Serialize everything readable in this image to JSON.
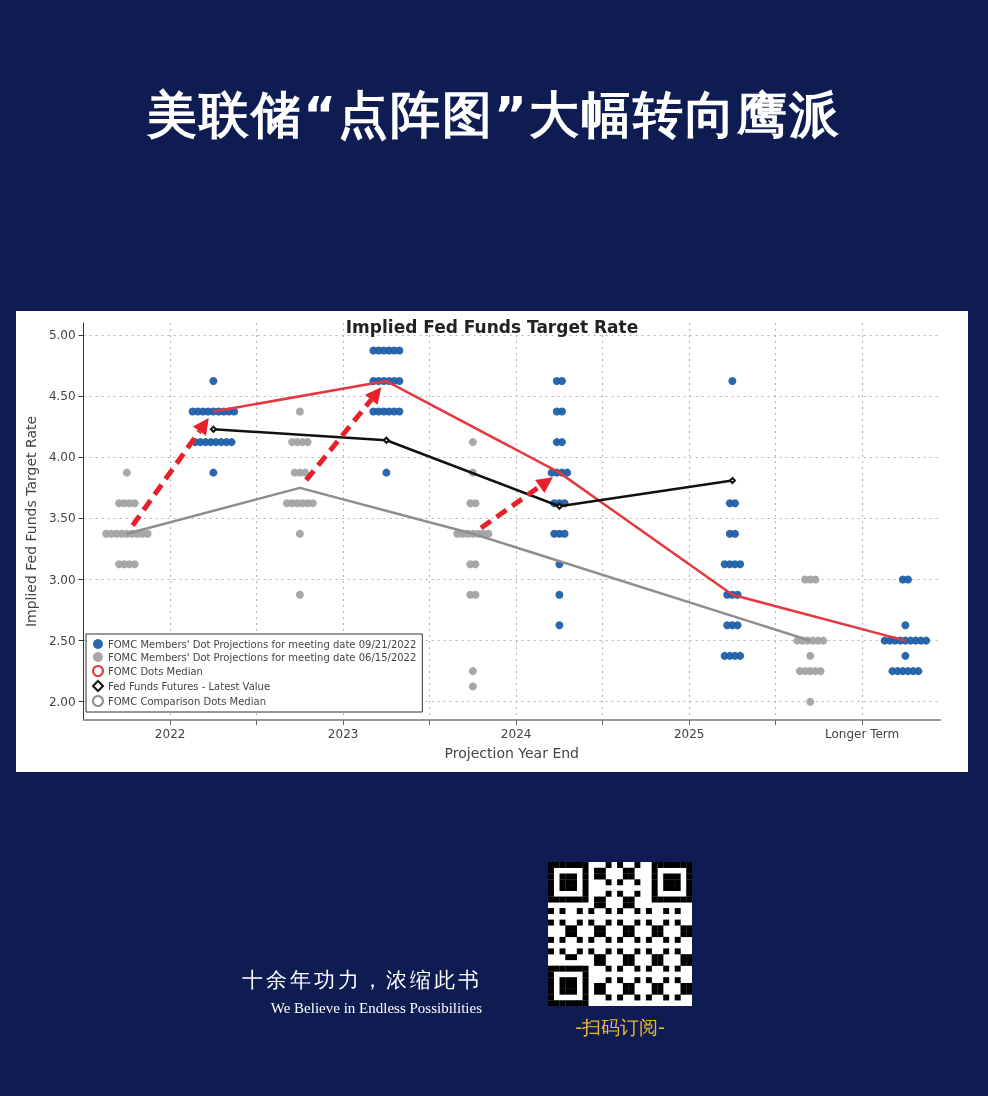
{
  "chart_data": {
    "type": "scatter",
    "title": "美联储“点阵图”大幅转向鹰派",
    "subtitle": "Implied Fed Funds Target Rate",
    "xlabel": "Projection Year End",
    "ylabel": "Implied Fed Funds Target Rate",
    "xlim": [
      2021.5,
      2026.45
    ],
    "ylim": [
      1.85,
      5.1
    ],
    "xticks": [
      {
        "value": 2022,
        "label": "2022"
      },
      {
        "value": 2022.5,
        "label": null
      },
      {
        "value": 2023,
        "label": "2023"
      },
      {
        "value": 2023.5,
        "label": null
      },
      {
        "value": 2024,
        "label": "2024"
      },
      {
        "value": 2024.5,
        "label": null
      },
      {
        "value": 2025,
        "label": "2025"
      },
      {
        "value": 2025.5,
        "label": null
      },
      {
        "value": 2026,
        "label": "Longer Term"
      }
    ],
    "yticks": [
      {
        "value": 2,
        "label": "2.00"
      },
      {
        "value": 2.5,
        "label": "2.50"
      },
      {
        "value": 3,
        "label": "3.00"
      },
      {
        "value": 3.5,
        "label": "3.50"
      },
      {
        "value": 4,
        "label": "4.00"
      },
      {
        "value": 4.5,
        "label": "4.50"
      },
      {
        "value": 5,
        "label": "5.00"
      }
    ],
    "grid": true,
    "legend": "bottom left",
    "series": [
      {
        "name": "FOMC Members' Dot Projections for meeting date 09/21/2022",
        "color": "#1f5fa8",
        "marker": "circle",
        "x": [
          2022.25,
          2022.13,
          2022.16,
          2022.19,
          2022.22,
          2022.25,
          2022.28,
          2022.31,
          2022.34,
          2022.37,
          2022.145,
          2022.175,
          2022.205,
          2022.235,
          2022.265,
          2022.295,
          2022.325,
          2022.355,
          2022.25,
          2023.175,
          2023.205,
          2023.235,
          2023.265,
          2023.295,
          2023.325,
          2023.175,
          2023.205,
          2023.235,
          2023.265,
          2023.295,
          2023.325,
          2023.175,
          2023.205,
          2023.235,
          2023.265,
          2023.295,
          2023.325,
          2023.25,
          2024.235,
          2024.265,
          2024.235,
          2024.265,
          2024.235,
          2024.265,
          2024.205,
          2024.235,
          2024.265,
          2024.295,
          2024.22,
          2024.25,
          2024.28,
          2024.22,
          2024.25,
          2024.28,
          2024.25,
          2024.25,
          2024.25,
          2025.25,
          2025.235,
          2025.265,
          2025.235,
          2025.265,
          2025.205,
          2025.235,
          2025.265,
          2025.295,
          2025.22,
          2025.25,
          2025.28,
          2025.22,
          2025.25,
          2025.28,
          2025.205,
          2025.235,
          2025.265,
          2025.295,
          2026.235,
          2026.265,
          2026.25,
          2026.13,
          2026.16,
          2026.19,
          2026.22,
          2026.25,
          2026.28,
          2026.31,
          2026.34,
          2026.37,
          2026.25,
          2026.175,
          2026.205,
          2026.235,
          2026.265,
          2026.295,
          2026.325
        ],
        "values": [
          4.625,
          4.375,
          4.375,
          4.375,
          4.375,
          4.375,
          4.375,
          4.375,
          4.375,
          4.375,
          4.125,
          4.125,
          4.125,
          4.125,
          4.125,
          4.125,
          4.125,
          4.125,
          3.875,
          4.875,
          4.875,
          4.875,
          4.875,
          4.875,
          4.875,
          4.625,
          4.625,
          4.625,
          4.625,
          4.625,
          4.625,
          4.375,
          4.375,
          4.375,
          4.375,
          4.375,
          4.375,
          3.875,
          4.625,
          4.625,
          4.375,
          4.375,
          4.125,
          4.125,
          3.875,
          3.875,
          3.875,
          3.875,
          3.625,
          3.625,
          3.625,
          3.375,
          3.375,
          3.375,
          3.125,
          2.875,
          2.625,
          4.625,
          3.625,
          3.625,
          3.375,
          3.375,
          3.125,
          3.125,
          3.125,
          3.125,
          2.875,
          2.875,
          2.875,
          2.625,
          2.625,
          2.625,
          2.375,
          2.375,
          2.375,
          2.375,
          3.0,
          3.0,
          2.625,
          2.5,
          2.5,
          2.5,
          2.5,
          2.5,
          2.5,
          2.5,
          2.5,
          2.5,
          2.375,
          2.25,
          2.25,
          2.25,
          2.25,
          2.25,
          2.25
        ]
      },
      {
        "name": "FOMC Members' Dot Projections for meeting date 06/15/2022",
        "color": "#a3a3a3",
        "marker": "circle",
        "x": [
          2021.75,
          2021.705,
          2021.735,
          2021.765,
          2021.795,
          2021.63,
          2021.66,
          2021.69,
          2021.72,
          2021.75,
          2021.78,
          2021.81,
          2021.84,
          2021.87,
          2021.705,
          2021.735,
          2021.765,
          2021.795,
          2022.75,
          2022.705,
          2022.735,
          2022.765,
          2022.795,
          2022.72,
          2022.75,
          2022.78,
          2022.675,
          2022.705,
          2022.735,
          2022.765,
          2022.795,
          2022.825,
          2022.75,
          2022.75,
          2023.75,
          2023.75,
          2023.735,
          2023.765,
          2023.66,
          2023.69,
          2023.72,
          2023.75,
          2023.78,
          2023.81,
          2023.84,
          2023.735,
          2023.765,
          2023.735,
          2023.765,
          2023.75,
          2023.75,
          2025.67,
          2025.7,
          2025.73,
          2025.625,
          2025.655,
          2025.685,
          2025.715,
          2025.745,
          2025.775,
          2025.7,
          2025.64,
          2025.67,
          2025.7,
          2025.73,
          2025.76,
          2025.7
        ],
        "values": [
          3.875,
          3.625,
          3.625,
          3.625,
          3.625,
          3.375,
          3.375,
          3.375,
          3.375,
          3.375,
          3.375,
          3.375,
          3.375,
          3.375,
          3.125,
          3.125,
          3.125,
          3.125,
          4.375,
          4.125,
          4.125,
          4.125,
          4.125,
          3.875,
          3.875,
          3.875,
          3.625,
          3.625,
          3.625,
          3.625,
          3.625,
          3.625,
          3.375,
          2.875,
          4.125,
          3.875,
          3.625,
          3.625,
          3.375,
          3.375,
          3.375,
          3.375,
          3.375,
          3.375,
          3.375,
          3.125,
          3.125,
          2.875,
          2.875,
          2.25,
          2.125,
          3.0,
          3.0,
          3.0,
          2.5,
          2.5,
          2.5,
          2.5,
          2.5,
          2.5,
          2.375,
          2.25,
          2.25,
          2.25,
          2.25,
          2.25,
          2.0
        ]
      },
      {
        "type": "line",
        "name": "FOMC Dots Median",
        "color": "#e5383f",
        "marker": "none",
        "x": [
          2022.25,
          2023.25,
          2024.25,
          2025.25,
          2026.25
        ],
        "values": [
          4.375,
          4.625,
          3.875,
          2.875,
          2.5
        ]
      },
      {
        "type": "line",
        "name": "Fed Funds Futures - Latest Value",
        "color": "#111111",
        "marker": "diamond",
        "x": [
          2022.25,
          2023.25,
          2024.25,
          2025.25
        ],
        "values": [
          4.23,
          4.14,
          3.6,
          3.81
        ]
      },
      {
        "type": "line",
        "name": "FOMC Comparison Dots Median",
        "color": "#8e8e8e",
        "marker": "none",
        "x": [
          2021.75,
          2022.75,
          2023.75,
          2025.7
        ],
        "values": [
          3.375,
          3.75,
          3.375,
          2.5
        ]
      }
    ],
    "annotations": [
      "十余年功力，浓缩此书",
      "We Believe in Endless Possibilities",
      "-扫码订阅-"
    ]
  }
}
